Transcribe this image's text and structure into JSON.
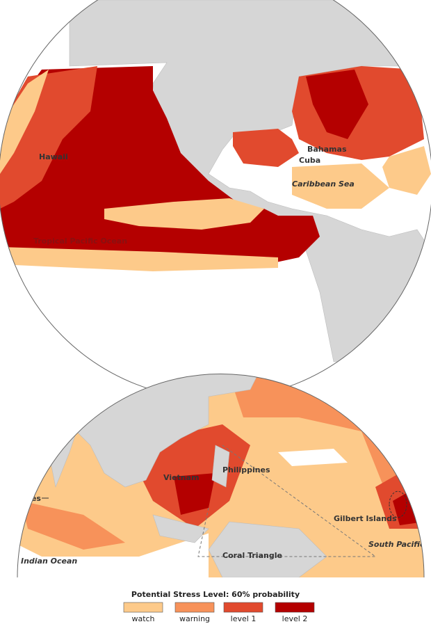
{
  "map": {
    "labels": [
      "Hawaii",
      "Bahamas",
      "Cuba",
      "Caribbean Sea",
      "Tropical Pacific Ocean",
      "Vietnam",
      "Philippines",
      "Maldives",
      "Gilbert Islands",
      "South Pacific",
      "Indian Ocean",
      "Coral Triangle"
    ],
    "legend": {
      "title": "Potential Stress Level: 60% probability",
      "items": [
        {
          "label": "watch",
          "color": "#fdca8a"
        },
        {
          "label": "warning",
          "color": "#f7925a"
        },
        {
          "label": "level 1",
          "color": "#e14a2e"
        },
        {
          "label": "level 2",
          "color": "#b40000"
        }
      ]
    }
  }
}
